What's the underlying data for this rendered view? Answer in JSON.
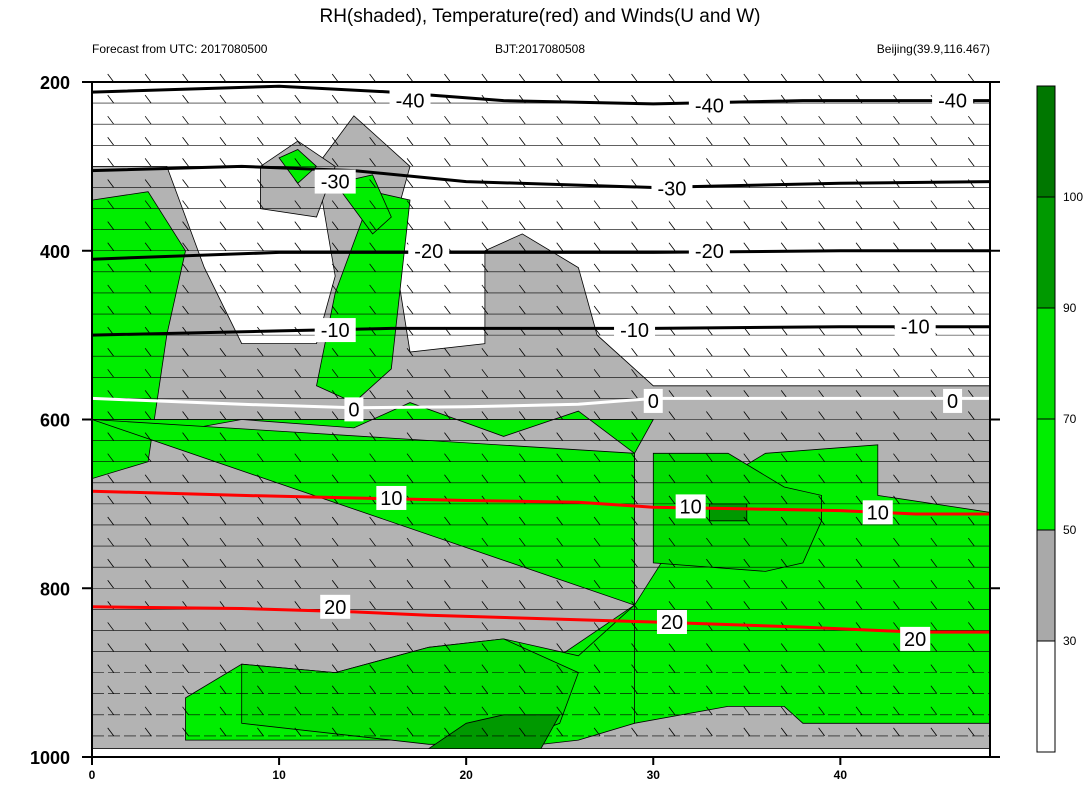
{
  "title": "RH(shaded), Temperature(red) and Winds(U and W)",
  "left_subtitle": "Forecast from UTC: 2017080500",
  "center_subtitle": "BJT:2017080508",
  "right_subtitle": "Beijing(39.9,116.467)",
  "chart_data": {
    "type": "contour",
    "x": {
      "ticks": [
        0,
        10,
        20,
        30,
        40
      ],
      "range": [
        0,
        48
      ]
    },
    "y": {
      "ticks": [
        200,
        400,
        600,
        800,
        1000
      ],
      "range": [
        200,
        1000
      ],
      "inverted": true
    },
    "colorbar": {
      "ticks": [
        30,
        50,
        70,
        90,
        100
      ],
      "colors": [
        "#ffffff",
        "#a9a9a9",
        "#00ee00",
        "#00dd00",
        "#009900",
        "#007700"
      ]
    },
    "rh_regions": [
      {
        "level": 40,
        "color": "#b3b3b3",
        "points": [
          [
            0,
            870
          ],
          [
            3,
            870
          ],
          [
            5,
            920
          ],
          [
            2,
            990
          ],
          [
            0,
            990
          ]
        ]
      },
      {
        "level": 40,
        "color": "#b3b3b3",
        "points": [
          [
            0,
            300
          ],
          [
            4,
            300
          ],
          [
            6,
            420
          ],
          [
            8,
            510
          ],
          [
            12,
            510
          ],
          [
            13,
            430
          ],
          [
            12,
            300
          ],
          [
            14,
            240
          ],
          [
            17,
            300
          ],
          [
            16,
            380
          ],
          [
            17,
            520
          ],
          [
            21,
            510
          ],
          [
            21,
            400
          ],
          [
            23,
            380
          ],
          [
            26,
            420
          ],
          [
            27,
            500
          ],
          [
            30,
            560
          ],
          [
            48,
            560
          ],
          [
            48,
            990
          ],
          [
            0,
            990
          ]
        ]
      },
      {
        "level": 40,
        "color": "#b3b3b3",
        "points": [
          [
            9,
            300
          ],
          [
            11,
            270
          ],
          [
            13,
            300
          ],
          [
            12,
            360
          ],
          [
            9,
            350
          ]
        ]
      },
      {
        "level": 60,
        "color": "#00ee00",
        "points": [
          [
            0,
            340
          ],
          [
            3,
            330
          ],
          [
            5,
            400
          ],
          [
            4,
            500
          ],
          [
            3,
            650
          ],
          [
            0,
            670
          ]
        ]
      },
      {
        "level": 60,
        "color": "#00ee00",
        "points": [
          [
            0,
            600
          ],
          [
            3,
            620
          ],
          [
            8,
            600
          ],
          [
            14,
            610
          ],
          [
            17,
            580
          ],
          [
            22,
            620
          ],
          [
            26,
            590
          ],
          [
            29,
            640
          ],
          [
            29,
            820
          ],
          [
            25,
            880
          ],
          [
            29,
            960
          ],
          [
            34,
            940
          ],
          [
            37,
            940
          ],
          [
            38,
            960
          ],
          [
            48,
            960
          ],
          [
            48,
            710
          ],
          [
            42,
            690
          ],
          [
            42,
            630
          ],
          [
            36,
            640
          ],
          [
            33,
            680
          ],
          [
            29,
            820
          ],
          [
            29,
            640
          ],
          [
            30,
            600
          ],
          [
            0,
            600
          ]
        ]
      },
      {
        "level": 60,
        "color": "#00ee00",
        "points": [
          [
            0,
            600
          ],
          [
            29,
            640
          ],
          [
            29,
            820
          ],
          [
            26,
            880
          ],
          [
            22,
            860
          ],
          [
            18,
            870
          ],
          [
            13,
            900
          ],
          [
            8,
            890
          ],
          [
            5,
            930
          ],
          [
            5,
            980
          ],
          [
            18,
            980
          ],
          [
            22,
            990
          ],
          [
            26,
            980
          ],
          [
            29,
            960
          ],
          [
            29,
            820
          ]
        ]
      },
      {
        "level": 60,
        "color": "#00ee00",
        "points": [
          [
            13,
            450
          ],
          [
            15,
            330
          ],
          [
            17,
            340
          ],
          [
            16,
            540
          ],
          [
            14,
            580
          ],
          [
            12,
            560
          ]
        ]
      },
      {
        "level": 60,
        "color": "#00ee00",
        "points": [
          [
            10,
            290
          ],
          [
            11,
            280
          ],
          [
            12,
            300
          ],
          [
            11,
            320
          ]
        ]
      },
      {
        "level": 60,
        "color": "#00ee00",
        "points": [
          [
            13,
            320
          ],
          [
            15,
            310
          ],
          [
            16,
            360
          ],
          [
            15,
            380
          ]
        ]
      },
      {
        "level": 70,
        "color": "#00dd00",
        "points": [
          [
            30,
            640
          ],
          [
            34,
            640
          ],
          [
            37,
            680
          ],
          [
            39,
            690
          ],
          [
            39,
            720
          ],
          [
            38,
            770
          ],
          [
            36,
            780
          ],
          [
            30,
            770
          ],
          [
            30,
            720
          ]
        ]
      },
      {
        "level": 70,
        "color": "#00dd00",
        "points": [
          [
            8,
            890
          ],
          [
            13,
            900
          ],
          [
            18,
            870
          ],
          [
            22,
            860
          ],
          [
            24,
            880
          ],
          [
            26,
            900
          ],
          [
            25,
            960
          ],
          [
            22,
            985
          ],
          [
            18,
            985
          ],
          [
            8,
            960
          ],
          [
            8,
            900
          ]
        ]
      },
      {
        "level": 90,
        "color": "#009900",
        "points": [
          [
            18,
            990
          ],
          [
            20,
            960
          ],
          [
            22,
            950
          ],
          [
            25,
            950
          ],
          [
            24,
            990
          ]
        ]
      },
      {
        "level": 90,
        "color": "#009900",
        "points": [
          [
            33,
            700
          ],
          [
            35,
            700
          ],
          [
            35,
            720
          ],
          [
            33,
            720
          ]
        ]
      }
    ],
    "temperature_contours": [
      {
        "label": "-40",
        "color": "#000000",
        "points": [
          [
            0,
            212
          ],
          [
            10,
            205
          ],
          [
            16,
            212
          ],
          [
            22,
            222
          ],
          [
            30,
            226
          ],
          [
            38,
            222
          ],
          [
            48,
            222
          ]
        ]
      },
      {
        "label": "-30",
        "color": "#000000",
        "points": [
          [
            0,
            305
          ],
          [
            8,
            300
          ],
          [
            14,
            305
          ],
          [
            20,
            318
          ],
          [
            30,
            325
          ],
          [
            40,
            320
          ],
          [
            48,
            318
          ]
        ]
      },
      {
        "label": "-20",
        "color": "#000000",
        "points": [
          [
            0,
            410
          ],
          [
            10,
            402
          ],
          [
            16,
            402
          ],
          [
            22,
            402
          ],
          [
            30,
            402
          ],
          [
            40,
            400
          ],
          [
            48,
            400
          ]
        ]
      },
      {
        "label": "-10",
        "color": "#000000",
        "points": [
          [
            0,
            500
          ],
          [
            10,
            495
          ],
          [
            16,
            492
          ],
          [
            22,
            492
          ],
          [
            30,
            492
          ],
          [
            40,
            490
          ],
          [
            48,
            490
          ]
        ]
      },
      {
        "label": "0",
        "color": "#ffffff",
        "points": [
          [
            0,
            575
          ],
          [
            8,
            582
          ],
          [
            14,
            586
          ],
          [
            20,
            585
          ],
          [
            26,
            582
          ],
          [
            30,
            575
          ],
          [
            40,
            575
          ],
          [
            48,
            575
          ]
        ]
      },
      {
        "label": "10",
        "color": "#ff0000",
        "points": [
          [
            0,
            685
          ],
          [
            8,
            690
          ],
          [
            16,
            694
          ],
          [
            20,
            696
          ],
          [
            26,
            698
          ],
          [
            30,
            704
          ],
          [
            35,
            706
          ],
          [
            40,
            708
          ],
          [
            44,
            712
          ],
          [
            48,
            712
          ]
        ]
      },
      {
        "label": "20",
        "color": "#ff0000",
        "points": [
          [
            0,
            822
          ],
          [
            8,
            824
          ],
          [
            14,
            828
          ],
          [
            18,
            832
          ],
          [
            24,
            836
          ],
          [
            30,
            840
          ],
          [
            38,
            846
          ],
          [
            44,
            852
          ],
          [
            48,
            852
          ]
        ]
      }
    ],
    "contour_labels": [
      {
        "text": "-40",
        "x": 17,
        "y": 222
      },
      {
        "text": "-40",
        "x": 33,
        "y": 228
      },
      {
        "text": "-40",
        "x": 46,
        "y": 222
      },
      {
        "text": "-30",
        "x": 13,
        "y": 318
      },
      {
        "text": "-30",
        "x": 31,
        "y": 326
      },
      {
        "text": "-20",
        "x": 18,
        "y": 400
      },
      {
        "text": "-20",
        "x": 33,
        "y": 400
      },
      {
        "text": "-10",
        "x": 13,
        "y": 494
      },
      {
        "text": "-10",
        "x": 29,
        "y": 494
      },
      {
        "text": "-10",
        "x": 44,
        "y": 490
      },
      {
        "text": "0",
        "x": 14,
        "y": 588
      },
      {
        "text": "0",
        "x": 30,
        "y": 578
      },
      {
        "text": "0",
        "x": 46,
        "y": 578
      },
      {
        "text": "10",
        "x": 16,
        "y": 693
      },
      {
        "text": "10",
        "x": 32,
        "y": 703
      },
      {
        "text": "10",
        "x": 42,
        "y": 710
      },
      {
        "text": "20",
        "x": 13,
        "y": 822
      },
      {
        "text": "20",
        "x": 31,
        "y": 840
      },
      {
        "text": "20",
        "x": 44,
        "y": 860
      }
    ]
  }
}
